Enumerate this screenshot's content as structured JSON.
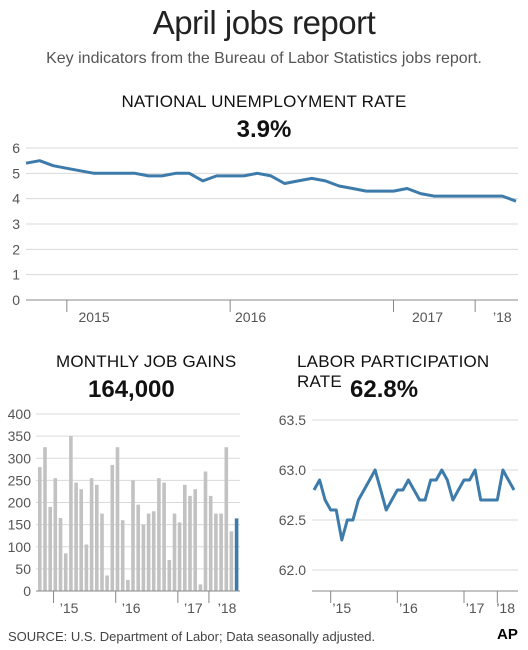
{
  "header": {
    "title": "April jobs report",
    "subtitle": "Key indicators from the Bureau of Labor Statistics jobs report."
  },
  "footer": {
    "source": "SOURCE: U.S. Department of Labor; Data seasonally adjusted.",
    "logo": "AP"
  },
  "colors": {
    "accent": "#3d7bab",
    "bar_gray": "#c2c2c2",
    "grid": "#d9d9d9"
  },
  "chart_data": [
    {
      "type": "line",
      "label": "NATIONAL UNEMPLOYMENT RATE",
      "headline": "3.9%",
      "ylim": [
        0,
        6
      ],
      "yticks": [
        "0",
        "1",
        "2",
        "3",
        "4",
        "5",
        "6"
      ],
      "xticks": [
        "2015",
        "2016",
        "2017",
        "’18"
      ],
      "values": [
        5.4,
        5.5,
        5.3,
        5.2,
        5.1,
        5.0,
        5.0,
        5.0,
        5.0,
        4.9,
        4.9,
        5.0,
        5.0,
        4.7,
        4.9,
        4.9,
        4.9,
        5.0,
        4.9,
        4.6,
        4.7,
        4.8,
        4.7,
        4.5,
        4.4,
        4.3,
        4.3,
        4.3,
        4.4,
        4.2,
        4.1,
        4.1,
        4.1,
        4.1,
        4.1,
        4.1,
        3.9
      ],
      "grid": true
    },
    {
      "type": "bar",
      "label": "MONTHLY JOB GAINS",
      "headline": "164,000",
      "ylim": [
        0,
        400
      ],
      "yticks": [
        "0",
        "50",
        "100",
        "150",
        "200",
        "250",
        "300",
        "350",
        "400"
      ],
      "xticks": [
        "’15",
        "’16",
        "’17",
        "’18"
      ],
      "values": [
        280,
        325,
        190,
        255,
        165,
        85,
        350,
        245,
        230,
        105,
        255,
        240,
        175,
        35,
        285,
        325,
        160,
        25,
        250,
        195,
        150,
        175,
        180,
        255,
        245,
        70,
        175,
        155,
        240,
        215,
        230,
        15,
        270,
        215,
        175,
        175,
        325,
        135,
        164
      ],
      "highlight_last": true,
      "grid": true
    },
    {
      "type": "line",
      "label": "LABOR PARTICIPATION RATE",
      "headline": "62.8%",
      "ylim": [
        61.9,
        63.5
      ],
      "yticks": [
        "62.0",
        "62.5",
        "63.0",
        "63.5"
      ],
      "xticks": [
        "’15",
        "’16",
        "’17",
        "’18"
      ],
      "values": [
        62.8,
        62.9,
        62.7,
        62.6,
        62.6,
        62.3,
        62.5,
        62.5,
        62.7,
        62.8,
        62.9,
        63.0,
        62.8,
        62.6,
        62.7,
        62.8,
        62.8,
        62.9,
        62.8,
        62.7,
        62.7,
        62.9,
        62.9,
        63.0,
        62.9,
        62.7,
        62.8,
        62.9,
        62.9,
        63.0,
        62.7,
        62.7,
        62.7,
        62.7,
        63.0,
        62.9,
        62.8
      ],
      "grid": true
    }
  ]
}
